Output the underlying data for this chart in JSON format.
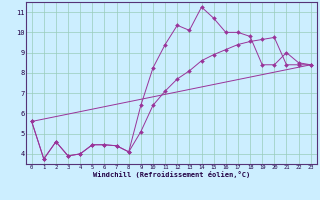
{
  "xlabel": "Windchill (Refroidissement éolien,°C)",
  "bg_color": "#cceeff",
  "grid_color": "#99ccbb",
  "line_color": "#993399",
  "line1_x": [
    0,
    1,
    2,
    3,
    4,
    5,
    6,
    7,
    8,
    9,
    10,
    11,
    12,
    13,
    14,
    15,
    16,
    17,
    18,
    19,
    20,
    21,
    22,
    23
  ],
  "line1_y": [
    5.6,
    3.75,
    4.6,
    3.9,
    4.0,
    4.45,
    4.45,
    4.4,
    4.1,
    6.4,
    8.25,
    9.4,
    10.35,
    10.1,
    11.25,
    10.7,
    10.0,
    10.0,
    9.8,
    8.4,
    8.4,
    9.0,
    8.5,
    8.4
  ],
  "line2_x": [
    0,
    1,
    2,
    3,
    4,
    5,
    6,
    7,
    8,
    9,
    10,
    11,
    12,
    13,
    14,
    15,
    16,
    17,
    18,
    19,
    20,
    21,
    22,
    23
  ],
  "line2_y": [
    5.6,
    3.75,
    4.6,
    3.9,
    4.0,
    4.45,
    4.45,
    4.4,
    4.1,
    5.1,
    6.4,
    7.1,
    7.7,
    8.1,
    8.6,
    8.9,
    9.15,
    9.4,
    9.55,
    9.65,
    9.75,
    8.4,
    8.4,
    8.4
  ],
  "line3_x": [
    0,
    23
  ],
  "line3_y": [
    5.6,
    8.4
  ],
  "ylim": [
    3.5,
    11.5
  ],
  "xlim": [
    -0.5,
    23.5
  ],
  "yticks": [
    4,
    5,
    6,
    7,
    8,
    9,
    10,
    11
  ],
  "xticks": [
    0,
    1,
    2,
    3,
    4,
    5,
    6,
    7,
    8,
    9,
    10,
    11,
    12,
    13,
    14,
    15,
    16,
    17,
    18,
    19,
    20,
    21,
    22,
    23
  ]
}
